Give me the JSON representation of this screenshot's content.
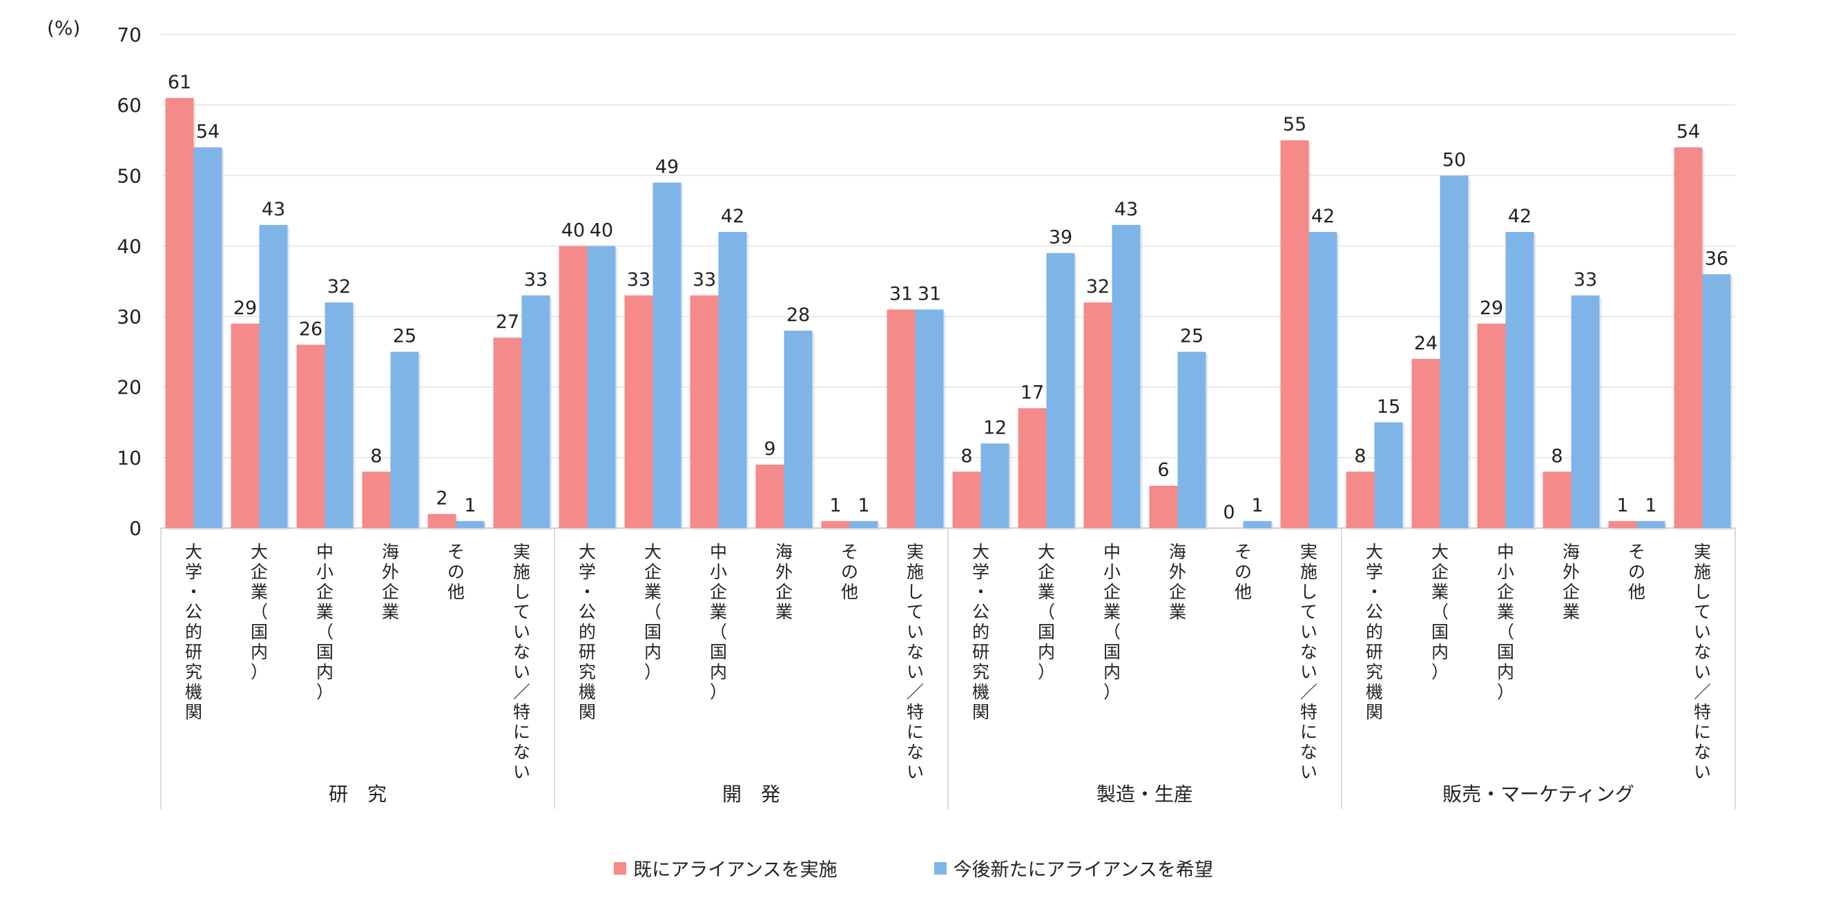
{
  "unit_label": "(%)",
  "colors": {
    "series_a": "#f48a89",
    "series_b": "#7fb4e8",
    "grid": "#e4e4e4",
    "axis": "#cfcfcf"
  },
  "legend": [
    {
      "label": "既にアライアンスを実施"
    },
    {
      "label": "今後新たにアライアンスを希望"
    }
  ],
  "chart_data": {
    "type": "bar",
    "ylim": [
      0,
      70
    ],
    "yticks": [
      0,
      10,
      20,
      30,
      40,
      50,
      60,
      70
    ],
    "grid": true,
    "legend_position": "bottom",
    "groups": [
      {
        "label": "研　究",
        "categories": [
          "大学・公的研究機関",
          "大企業（国内）",
          "中小企業（国内）",
          "海外企業",
          "その他",
          "実施していない／特にない"
        ]
      },
      {
        "label": "開　発",
        "categories": [
          "大学・公的研究機関",
          "大企業（国内）",
          "中小企業（国内）",
          "海外企業",
          "その他",
          "実施していない／特にない"
        ]
      },
      {
        "label": "製造・生産",
        "categories": [
          "大学・公的研究機関",
          "大企業（国内）",
          "中小企業（国内）",
          "海外企業",
          "その他",
          "実施していない／特にない"
        ]
      },
      {
        "label": "販売・マーケティング",
        "categories": [
          "大学・公的研究機関",
          "大企業（国内）",
          "中小企業（国内）",
          "海外企業",
          "その他",
          "実施していない／特にない"
        ]
      }
    ],
    "series": [
      {
        "name": "既にアライアンスを実施",
        "values": [
          61,
          29,
          26,
          8,
          2,
          27,
          40,
          33,
          33,
          9,
          1,
          31,
          8,
          17,
          32,
          6,
          0,
          55,
          8,
          24,
          29,
          8,
          1,
          54
        ]
      },
      {
        "name": "今後新たにアライアンスを希望",
        "values": [
          54,
          43,
          32,
          25,
          1,
          33,
          40,
          49,
          42,
          28,
          1,
          31,
          12,
          39,
          43,
          25,
          1,
          42,
          15,
          50,
          42,
          33,
          1,
          36
        ]
      }
    ]
  }
}
